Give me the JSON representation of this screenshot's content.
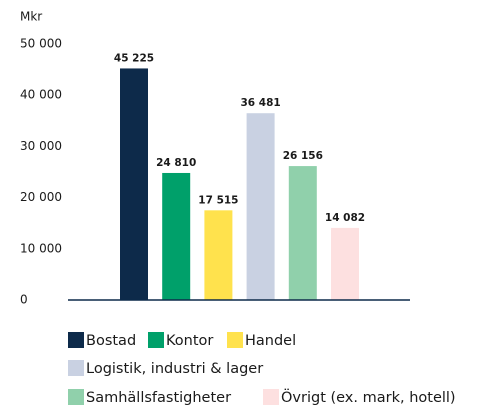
{
  "chart_data": {
    "type": "bar",
    "y_label": "Mkr",
    "categories": [
      "Bostad",
      "Kontor",
      "Handel",
      "Logistik, industri & lager",
      "Samhällsfastigheter",
      "Övrigt (ex. mark, hotell)"
    ],
    "values": [
      45225,
      24810,
      17515,
      36481,
      26156,
      14082
    ],
    "value_labels": [
      "45 225",
      "24 810",
      "17 515",
      "36 481",
      "26 156",
      "14 082"
    ],
    "colors": [
      "#0d2a4a",
      "#00a06a",
      "#ffe24d",
      "#c9d1e2",
      "#90d0ab",
      "#fde0e0"
    ],
    "ylim": [
      0,
      50000
    ],
    "yticks": [
      0,
      {
        "value": 10000,
        "label": "10 000"
      },
      {
        "value": 20000,
        "label": "20 000"
      },
      {
        "value": 30000,
        "label": "30 000"
      },
      {
        "value": 40000,
        "label": "40 000"
      },
      {
        "value": 50000,
        "label": "50 000"
      }
    ],
    "grid": false
  }
}
